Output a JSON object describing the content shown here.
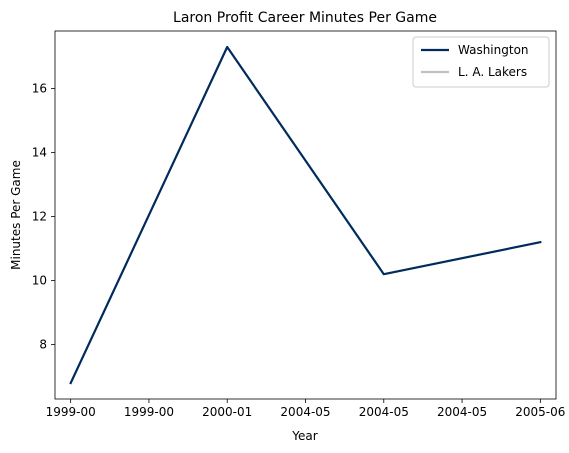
{
  "chart_data": {
    "type": "line",
    "title": "Laron Profit Career Minutes Per Game",
    "xlabel": "Year",
    "ylabel": "Minutes Per Game",
    "x_tick_labels": [
      "1999-00",
      "1999-00",
      "2000-01",
      "2004-05",
      "2004-05",
      "2004-05",
      "2005-06"
    ],
    "x_range": [
      -0.2,
      6.2
    ],
    "ylim": [
      6.3,
      17.8
    ],
    "y_ticks": [
      8,
      10,
      12,
      14,
      16
    ],
    "grid": false,
    "legend_position": "top-right",
    "series": [
      {
        "name": "Washington",
        "color": "#002b5c",
        "points": [
          {
            "x": 0,
            "y": 6.8
          },
          {
            "x": 2,
            "y": 17.3
          },
          {
            "x": 4,
            "y": 10.2
          },
          {
            "x": 6,
            "y": 11.2
          }
        ]
      },
      {
        "name": "L. A. Lakers",
        "color": "#c0c0c0",
        "points": []
      }
    ]
  }
}
